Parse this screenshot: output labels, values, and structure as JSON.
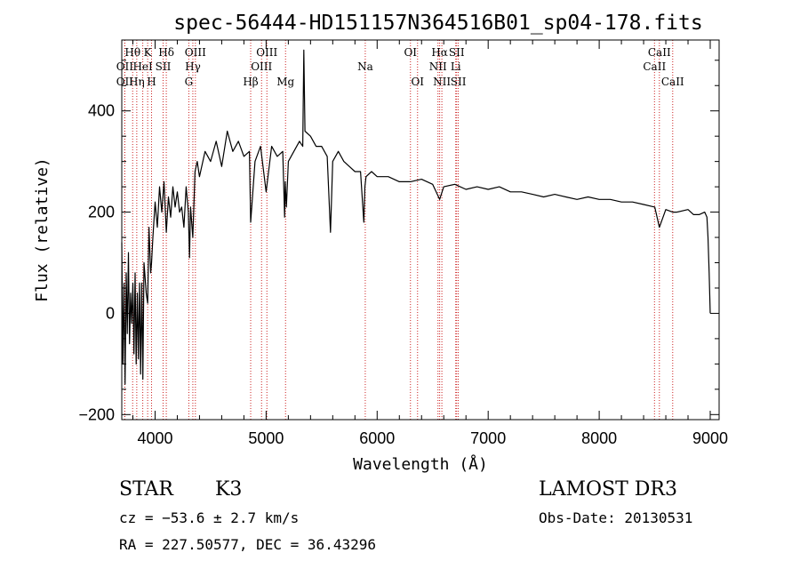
{
  "chart_data": {
    "type": "line",
    "title": "spec-56444-HD151157N364516B01_sp04-178.fits",
    "xlabel": "Wavelength (Å)",
    "ylabel": "Flux (relative)",
    "xlim": [
      3700,
      9080
    ],
    "ylim": [
      -210,
      540
    ],
    "x_ticks": [
      4000,
      5000,
      6000,
      7000,
      8000,
      9000
    ],
    "y_ticks": [
      -200,
      0,
      200,
      400
    ],
    "x_minor_step": 200,
    "y_minor_step": 50,
    "grid": false,
    "line_color": "#000000",
    "marker_color": "#cc2222",
    "series": [
      {
        "name": "flux",
        "x": [
          3700,
          3710,
          3720,
          3730,
          3740,
          3750,
          3760,
          3770,
          3780,
          3790,
          3800,
          3810,
          3820,
          3830,
          3840,
          3850,
          3860,
          3870,
          3880,
          3890,
          3900,
          3920,
          3933,
          3945,
          3960,
          3968,
          3980,
          4000,
          4020,
          4040,
          4060,
          4080,
          4101,
          4120,
          4140,
          4160,
          4180,
          4200,
          4220,
          4240,
          4260,
          4280,
          4300,
          4310,
          4320,
          4340,
          4360,
          4380,
          4400,
          4450,
          4500,
          4550,
          4600,
          4650,
          4700,
          4750,
          4800,
          4850,
          4861,
          4900,
          4950,
          5000,
          5050,
          5100,
          5150,
          5167,
          5172,
          5183,
          5200,
          5250,
          5300,
          5330,
          5340,
          5350,
          5400,
          5450,
          5500,
          5550,
          5580,
          5600,
          5650,
          5700,
          5750,
          5800,
          5850,
          5880,
          5890,
          5900,
          5950,
          6000,
          6100,
          6200,
          6300,
          6400,
          6500,
          6563,
          6600,
          6700,
          6800,
          6900,
          7000,
          7100,
          7200,
          7300,
          7400,
          7500,
          7600,
          7700,
          7800,
          7900,
          8000,
          8100,
          8200,
          8300,
          8400,
          8500,
          8542,
          8600,
          8662,
          8700,
          8800,
          8850,
          8900,
          8950,
          8970,
          8980,
          8990,
          9000
        ],
        "y": [
          140,
          -100,
          60,
          -140,
          80,
          -40,
          120,
          -60,
          40,
          -20,
          60,
          -80,
          80,
          -100,
          40,
          -90,
          60,
          -120,
          60,
          -130,
          100,
          40,
          20,
          170,
          80,
          100,
          150,
          220,
          170,
          250,
          200,
          260,
          160,
          230,
          190,
          250,
          210,
          240,
          200,
          210,
          170,
          250,
          200,
          110,
          210,
          150,
          280,
          300,
          270,
          320,
          300,
          340,
          290,
          360,
          320,
          340,
          310,
          320,
          180,
          300,
          330,
          240,
          330,
          310,
          320,
          190,
          260,
          210,
          300,
          320,
          340,
          330,
          520,
          360,
          350,
          330,
          330,
          310,
          160,
          300,
          320,
          300,
          290,
          280,
          280,
          180,
          250,
          270,
          280,
          270,
          270,
          260,
          260,
          265,
          255,
          225,
          250,
          255,
          245,
          250,
          245,
          250,
          240,
          240,
          235,
          230,
          235,
          230,
          225,
          230,
          225,
          225,
          220,
          220,
          215,
          210,
          170,
          205,
          200,
          200,
          205,
          195,
          195,
          200,
          190,
          150,
          80,
          0
        ]
      }
    ],
    "lines": [
      {
        "name": "Hθ",
        "wl": 3798,
        "tier": 1
      },
      {
        "name": "OII",
        "wl": 3727,
        "tier": 2
      },
      {
        "name": "OII",
        "wl": 3727,
        "tier": 3
      },
      {
        "name": "Hη",
        "wl": 3835,
        "tier": 3
      },
      {
        "name": "HeI",
        "wl": 3889,
        "tier": 2
      },
      {
        "name": "K",
        "wl": 3933,
        "tier": 1
      },
      {
        "name": "H",
        "wl": 3968,
        "tier": 3
      },
      {
        "name": "SII",
        "wl": 4072,
        "tier": 2
      },
      {
        "name": "Hδ",
        "wl": 4101,
        "tier": 1
      },
      {
        "name": "OIII",
        "wl": 4363,
        "tier": 1
      },
      {
        "name": "Hγ",
        "wl": 4340,
        "tier": 2
      },
      {
        "name": "G",
        "wl": 4304,
        "tier": 3
      },
      {
        "name": "Hβ",
        "wl": 4861,
        "tier": 3
      },
      {
        "name": "OIII",
        "wl": 4959,
        "tier": 2
      },
      {
        "name": "OIII",
        "wl": 5007,
        "tier": 1
      },
      {
        "name": "Mg",
        "wl": 5175,
        "tier": 3
      },
      {
        "name": "Na",
        "wl": 5893,
        "tier": 2
      },
      {
        "name": "OI",
        "wl": 6300,
        "tier": 1
      },
      {
        "name": "OI",
        "wl": 6364,
        "tier": 3
      },
      {
        "name": "NII",
        "wl": 6548,
        "tier": 2
      },
      {
        "name": "Hα",
        "wl": 6563,
        "tier": 1
      },
      {
        "name": "NII",
        "wl": 6583,
        "tier": 3
      },
      {
        "name": "SII",
        "wl": 6716,
        "tier": 1
      },
      {
        "name": "Li",
        "wl": 6708,
        "tier": 2
      },
      {
        "name": "SII",
        "wl": 6731,
        "tier": 3
      },
      {
        "name": "CaII",
        "wl": 8542,
        "tier": 1
      },
      {
        "name": "CaII",
        "wl": 8498,
        "tier": 2
      },
      {
        "name": "CaII",
        "wl": 8662,
        "tier": 3
      }
    ]
  },
  "info": {
    "object_class": "STAR",
    "subclass": "K3",
    "survey": "LAMOST DR3",
    "redshift": "cz = −53.6 ± 2.7 km/s",
    "obs_date": "Obs-Date: 20130531",
    "coords": "RA = 227.50577, DEC =  36.43296"
  }
}
